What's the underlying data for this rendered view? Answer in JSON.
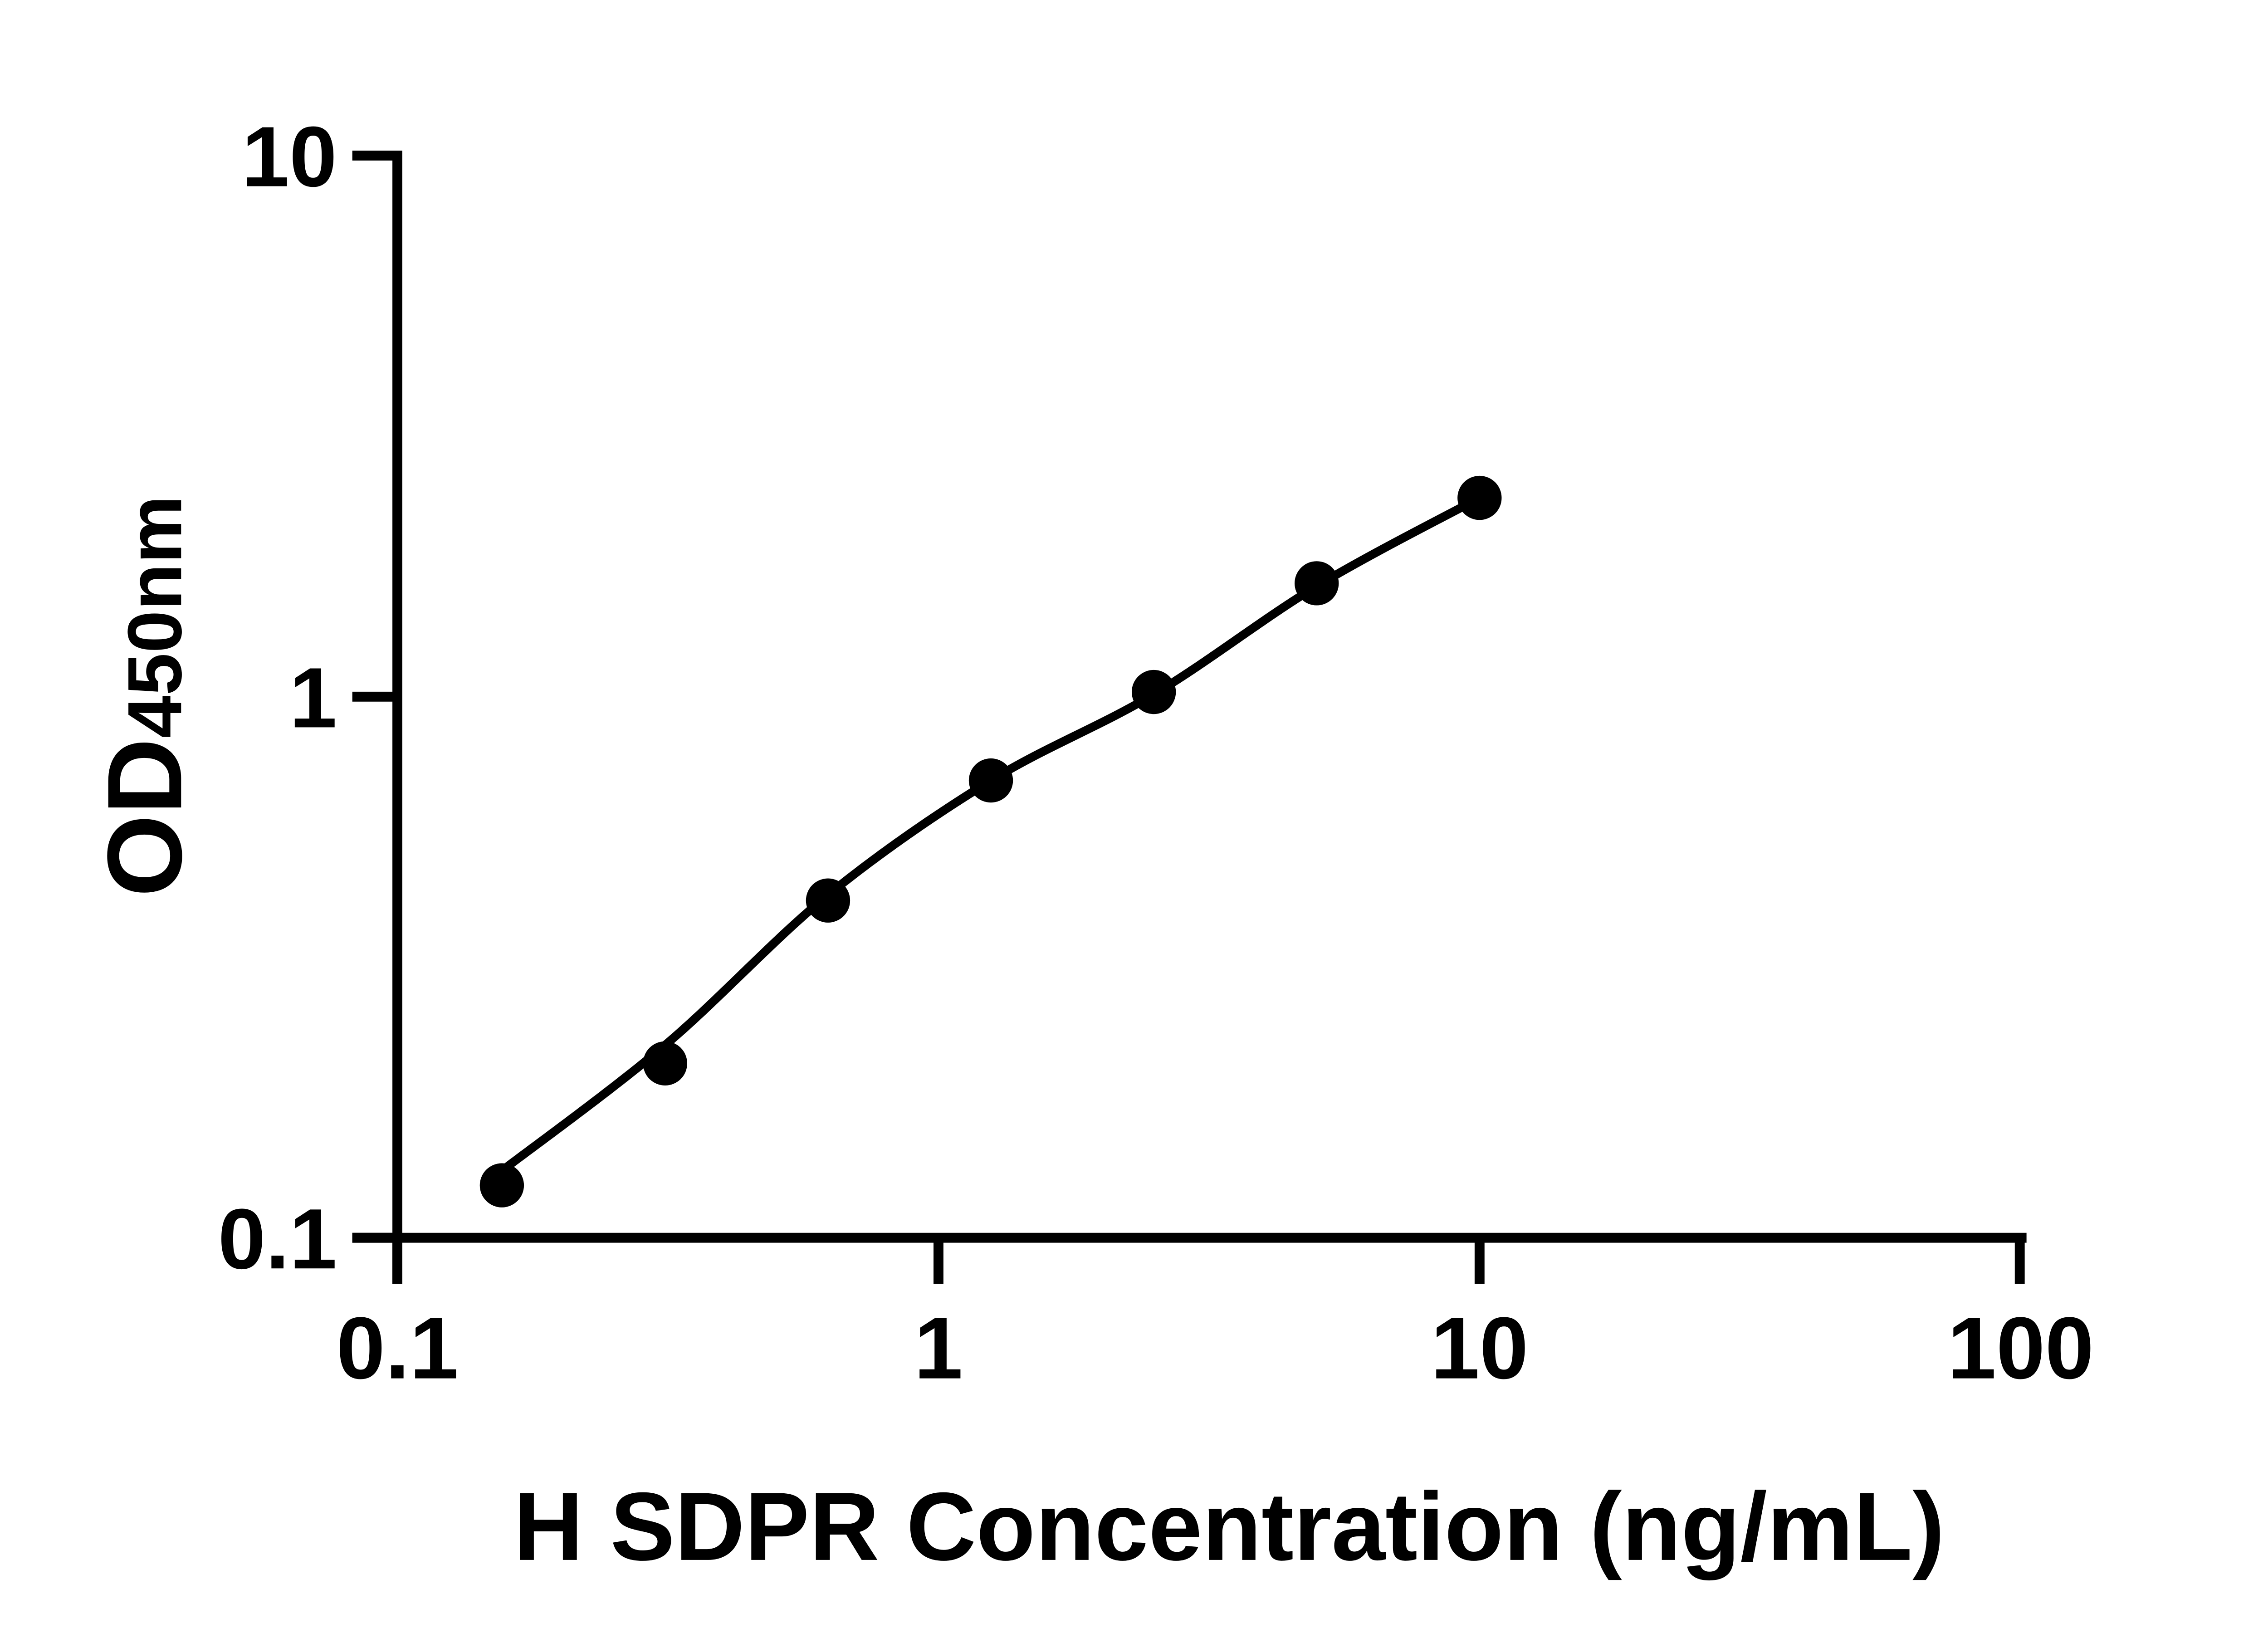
{
  "page": {
    "background_color": "#ffffff",
    "foreground_color": "#000000"
  },
  "chart_data": {
    "type": "scatter",
    "xlabel": "H SDPR Concentration (ng/mL)",
    "ylabel_main": "OD",
    "ylabel_sub": "450nm",
    "x_scale": "log",
    "y_scale": "log",
    "xlim": [
      0.1,
      100
    ],
    "ylim": [
      0.1,
      10
    ],
    "grid": false,
    "legend": false,
    "x_ticks": [
      {
        "value": 0.1,
        "label": "0.1"
      },
      {
        "value": 1,
        "label": "1"
      },
      {
        "value": 10,
        "label": "10"
      },
      {
        "value": 100,
        "label": "100"
      }
    ],
    "y_ticks": [
      {
        "value": 0.1,
        "label": "0.1"
      },
      {
        "value": 1,
        "label": "1"
      },
      {
        "value": 10,
        "label": "10"
      }
    ],
    "points": [
      {
        "x": 0.156,
        "y": 0.125
      },
      {
        "x": 0.3125,
        "y": 0.21
      },
      {
        "x": 0.625,
        "y": 0.42
      },
      {
        "x": 1.25,
        "y": 0.7
      },
      {
        "x": 2.5,
        "y": 1.02
      },
      {
        "x": 5,
        "y": 1.62
      },
      {
        "x": 10,
        "y": 2.33
      }
    ],
    "fit_curve_points": [
      {
        "x": 0.156,
        "y": 0.133
      },
      {
        "x": 0.3125,
        "y": 0.227
      },
      {
        "x": 0.625,
        "y": 0.43
      },
      {
        "x": 1.25,
        "y": 0.7
      },
      {
        "x": 2.5,
        "y": 1.01
      },
      {
        "x": 5,
        "y": 1.6
      },
      {
        "x": 10,
        "y": 2.33
      }
    ],
    "marker_color": "#000000",
    "line_color": "#000000",
    "axis_color": "#000000"
  }
}
